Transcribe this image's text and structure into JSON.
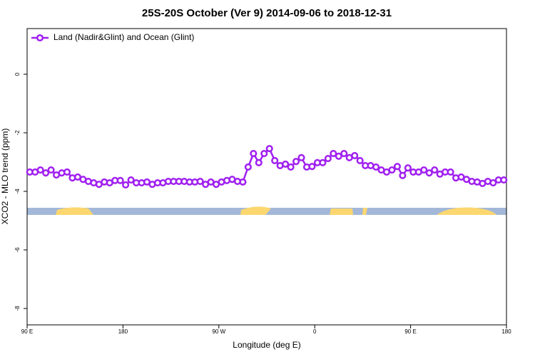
{
  "chart_data": {
    "type": "line",
    "title": "25S-20S October (Ver 9)   2014-09-06 to 2018-12-31",
    "xlabel": "Longitude (deg E)",
    "ylabel": "XCO2 - MLO trend (ppm)",
    "xlim": [
      90,
      540
    ],
    "ylim": [
      -8.56,
      1.56
    ],
    "xticks": [
      {
        "value": 90,
        "label": "90 E"
      },
      180,
      {
        "value": 270,
        "label": "90 W"
      },
      {
        "value": 360,
        "label": "0"
      },
      {
        "value": 450,
        "label": "90 E"
      },
      {
        "value": 540,
        "label": "180"
      }
    ],
    "yticks": [
      0,
      -2,
      -4,
      -6,
      -8
    ],
    "legend": "top-left",
    "x": [
      92.5,
      97.5,
      102.5,
      107.5,
      112.5,
      117.5,
      122.5,
      127.5,
      132.5,
      137.5,
      142.5,
      147.5,
      152.5,
      157.5,
      162.5,
      167.5,
      172.5,
      177.5,
      182.5,
      187.5,
      192.5,
      197.5,
      202.5,
      207.5,
      212.5,
      217.5,
      222.5,
      227.5,
      232.5,
      237.5,
      242.5,
      247.5,
      252.5,
      257.5,
      262.5,
      267.5,
      272.5,
      277.5,
      282.5,
      287.5,
      292.5,
      297.5,
      302.5,
      307.5,
      312.5,
      317.5,
      322.5,
      327.5,
      332.5,
      337.5,
      342.5,
      347.5,
      352.5,
      357.5,
      362.5,
      367.5,
      372.5,
      377.5,
      382.5,
      387.5,
      392.5,
      397.5,
      402.5,
      407.5,
      412.5,
      417.5,
      422.5,
      427.5,
      432.5,
      437.5,
      442.5,
      447.5,
      452.5,
      457.5,
      462.5,
      467.5,
      472.5,
      477.5,
      482.5,
      487.5,
      492.5,
      497.5,
      502.5,
      507.5,
      512.5,
      517.5,
      522.5,
      527.5,
      532.5,
      537.5
    ],
    "series": [
      {
        "name": "Land (Nadir&Glint) and Ocean (Glint)",
        "color": "#a020f0",
        "values": [
          -3.34,
          -3.34,
          -3.27,
          -3.37,
          -3.27,
          -3.44,
          -3.37,
          -3.34,
          -3.54,
          -3.51,
          -3.59,
          -3.66,
          -3.71,
          -3.76,
          -3.68,
          -3.71,
          -3.63,
          -3.63,
          -3.78,
          -3.61,
          -3.71,
          -3.71,
          -3.68,
          -3.76,
          -3.71,
          -3.71,
          -3.66,
          -3.66,
          -3.66,
          -3.66,
          -3.68,
          -3.68,
          -3.66,
          -3.76,
          -3.68,
          -3.76,
          -3.68,
          -3.63,
          -3.59,
          -3.66,
          -3.68,
          -3.17,
          -2.71,
          -3.02,
          -2.71,
          -2.54,
          -2.95,
          -3.12,
          -3.07,
          -3.17,
          -2.98,
          -2.85,
          -3.17,
          -3.15,
          -3.02,
          -3.02,
          -2.88,
          -2.71,
          -2.8,
          -2.71,
          -2.85,
          -2.78,
          -2.95,
          -3.12,
          -3.12,
          -3.17,
          -3.27,
          -3.34,
          -3.27,
          -3.15,
          -3.46,
          -3.2,
          -3.34,
          -3.34,
          -3.27,
          -3.37,
          -3.27,
          -3.41,
          -3.34,
          -3.34,
          -3.54,
          -3.51,
          -3.59,
          -3.66,
          -3.68,
          -3.73,
          -3.66,
          -3.71,
          -3.61,
          -3.61
        ]
      }
    ]
  }
}
